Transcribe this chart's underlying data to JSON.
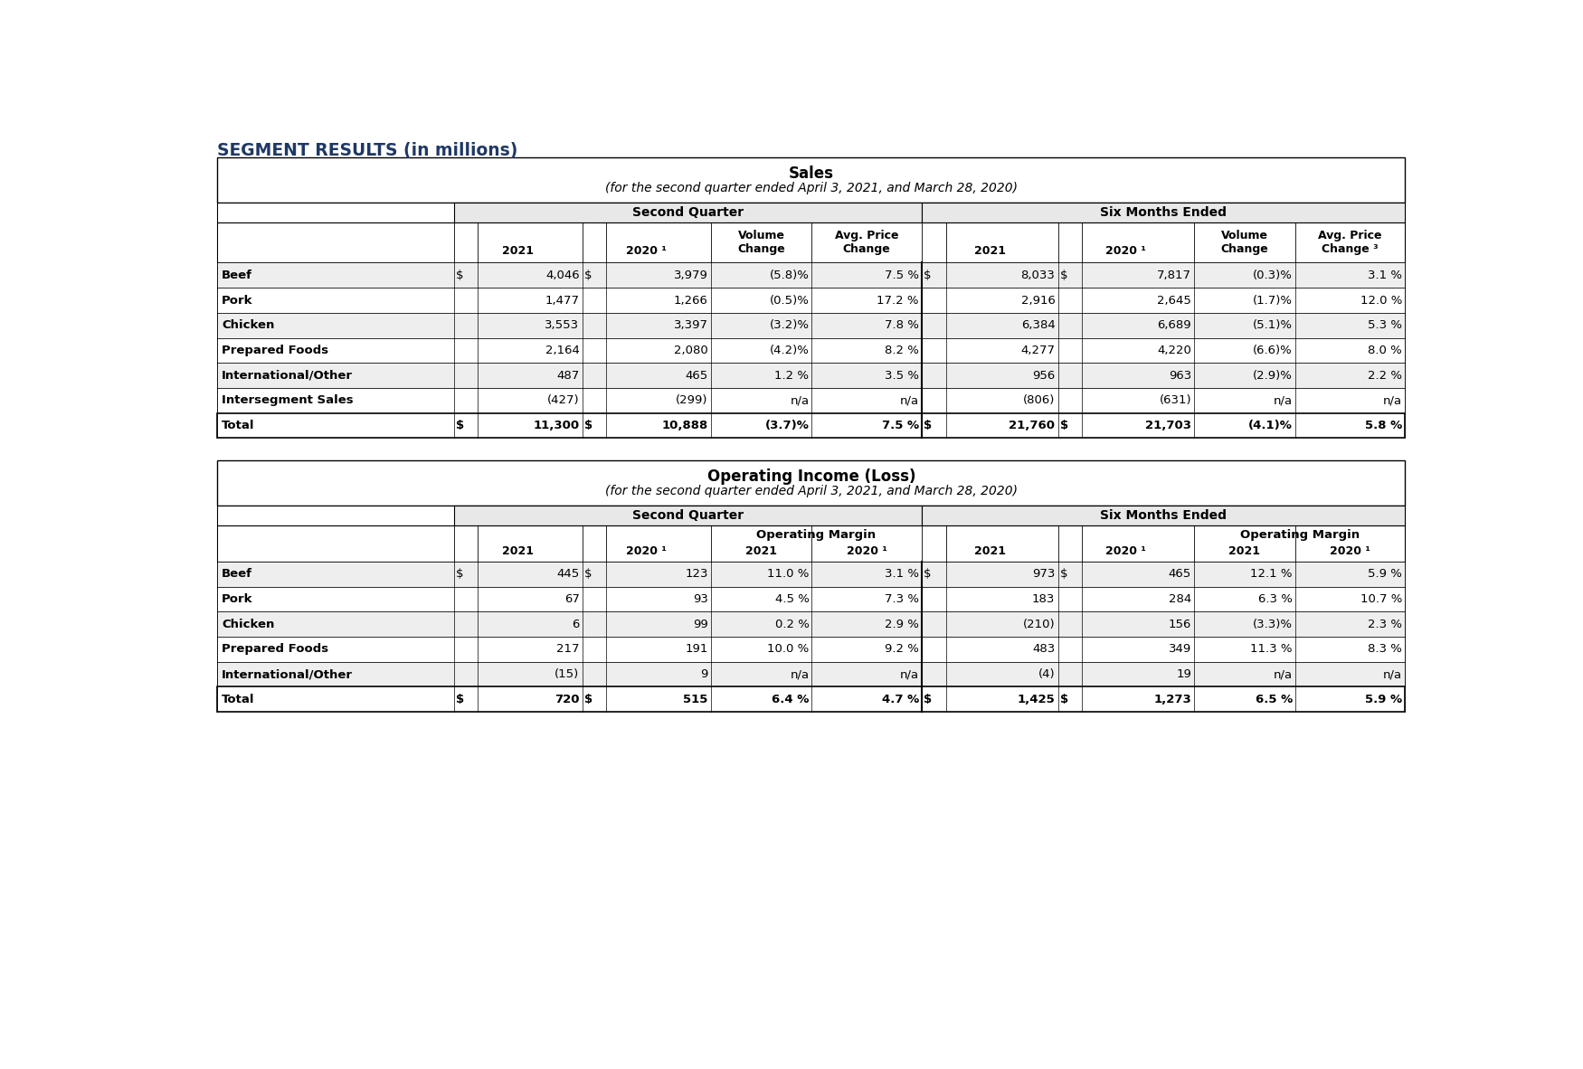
{
  "page_title": "SEGMENT RESULTS (in millions)",
  "table1_title": "Sales",
  "table1_subtitle": "(for the second quarter ended April 3, 2021, and March 28, 2020)",
  "table2_title": "Operating Income (Loss)",
  "table2_subtitle": "(for the second quarter ended April 3, 2021, and March 28, 2020)",
  "col_group1": "Second Quarter",
  "col_group2": "Six Months Ended",
  "sales_rows": [
    [
      "Beef",
      "$",
      "4,046",
      "$",
      "3,979",
      "(5.8)%",
      "7.5 %",
      "$",
      "8,033",
      "$",
      "7,817",
      "(0.3)%",
      "3.1 %"
    ],
    [
      "Pork",
      "",
      "1,477",
      "",
      "1,266",
      "(0.5)%",
      "17.2 %",
      "",
      "2,916",
      "",
      "2,645",
      "(1.7)%",
      "12.0 %"
    ],
    [
      "Chicken",
      "",
      "3,553",
      "",
      "3,397",
      "(3.2)%",
      "7.8 %",
      "",
      "6,384",
      "",
      "6,689",
      "(5.1)%",
      "5.3 %"
    ],
    [
      "Prepared Foods",
      "",
      "2,164",
      "",
      "2,080",
      "(4.2)%",
      "8.2 %",
      "",
      "4,277",
      "",
      "4,220",
      "(6.6)%",
      "8.0 %"
    ],
    [
      "International/Other",
      "",
      "487",
      "",
      "465",
      "1.2 %",
      "3.5 %",
      "",
      "956",
      "",
      "963",
      "(2.9)%",
      "2.2 %"
    ],
    [
      "Intersegment Sales",
      "",
      "(427)",
      "",
      "(299)",
      "n/a",
      "n/a",
      "",
      "(806)",
      "",
      "(631)",
      "n/a",
      "n/a"
    ]
  ],
  "sales_total": [
    "Total",
    "$",
    "11,300",
    "$",
    "10,888",
    "(3.7)%",
    "7.5 %",
    "$",
    "21,760",
    "$",
    "21,703",
    "(4.1)%",
    "5.8 %"
  ],
  "oi_rows": [
    [
      "Beef",
      "$",
      "445",
      "$",
      "123",
      "11.0 %",
      "3.1 %",
      "$",
      "973",
      "$",
      "465",
      "12.1 %",
      "5.9 %"
    ],
    [
      "Pork",
      "",
      "67",
      "",
      "93",
      "4.5 %",
      "7.3 %",
      "",
      "183",
      "",
      "284",
      "6.3 %",
      "10.7 %"
    ],
    [
      "Chicken",
      "",
      "6",
      "",
      "99",
      "0.2 %",
      "2.9 %",
      "",
      "(210)",
      "",
      "156",
      "(3.3)%",
      "2.3 %"
    ],
    [
      "Prepared Foods",
      "",
      "217",
      "",
      "191",
      "10.0 %",
      "9.2 %",
      "",
      "483",
      "",
      "349",
      "11.3 %",
      "8.3 %"
    ],
    [
      "International/Other",
      "",
      "(15)",
      "",
      "9",
      "n/a",
      "n/a",
      "",
      "(4)",
      "",
      "19",
      "n/a",
      "n/a"
    ]
  ],
  "oi_total": [
    "Total",
    "$",
    "720",
    "$",
    "515",
    "6.4 %",
    "4.7 %",
    "$",
    "1,425",
    "$",
    "1,273",
    "6.5 %",
    "5.9 %"
  ],
  "header_bg": "#e8e8e8",
  "row_shaded_bg": "#eeeeee",
  "row_plain_bg": "#ffffff",
  "title_color": "#1f3864",
  "border_color": "#000000"
}
